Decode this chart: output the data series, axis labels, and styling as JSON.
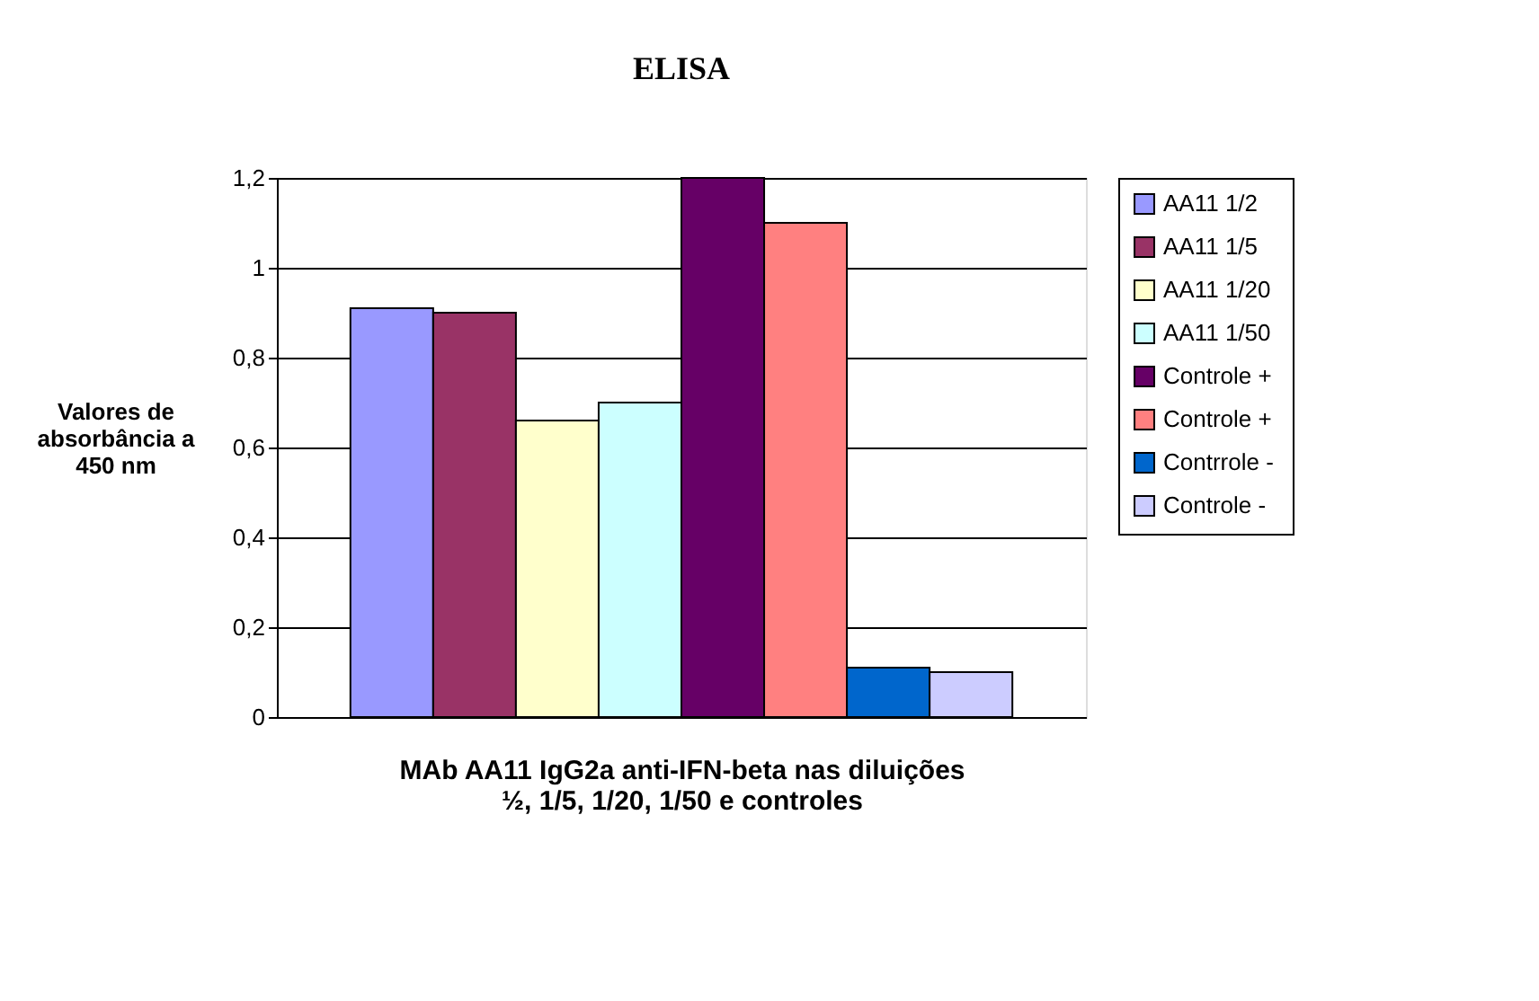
{
  "chart_data": {
    "type": "bar",
    "title": "ELISA",
    "xlabel": "MAb AA11 IgG2a anti-IFN-beta  nas diluições\n½, 1/5, 1/20, 1/50 e controles",
    "ylabel": "Valores de\nabsorbância a\n450 nm",
    "categories": [
      null
    ],
    "series": [
      {
        "name": "AA11  1/2",
        "color": "#9999ff",
        "values": [
          0.91
        ]
      },
      {
        "name": "AA11  1/5",
        "color": "#993366",
        "values": [
          0.9
        ]
      },
      {
        "name": "AA11  1/20",
        "color": "#ffffcc",
        "values": [
          0.66
        ]
      },
      {
        "name": "AA11  1/50",
        "color": "#ccffff",
        "values": [
          0.7
        ]
      },
      {
        "name": "Controle +",
        "color": "#660066",
        "values": [
          1.2
        ]
      },
      {
        "name": "Controle +",
        "color": "#ff8080",
        "values": [
          1.1
        ]
      },
      {
        "name": "Contrrole -",
        "color": "#0066cc",
        "values": [
          0.11
        ]
      },
      {
        "name": "Controle -",
        "color": "#ccccff",
        "values": [
          0.1
        ]
      }
    ],
    "ylim": [
      0,
      1.2
    ],
    "yticks": [
      0,
      {
        "value": 0.2,
        "label": "0,2"
      },
      {
        "value": 0.4,
        "label": "0,4"
      },
      {
        "value": 0.6,
        "label": "0,6"
      },
      {
        "value": 0.8,
        "label": "0,8"
      },
      1,
      {
        "value": 1.2,
        "label": "1,2"
      }
    ],
    "grid": "y",
    "legend": "right"
  }
}
